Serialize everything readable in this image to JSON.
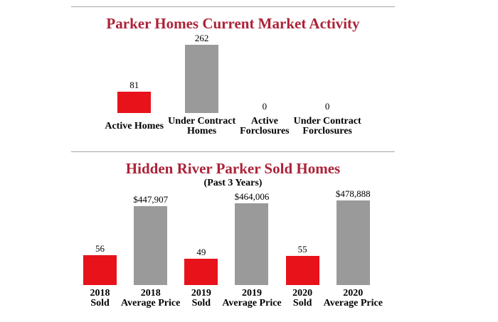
{
  "page": {
    "background": "#ffffff"
  },
  "colors": {
    "title_red": "#ac2238",
    "bar_red": "#e8121b",
    "bar_gray": "#9a9a9a",
    "divider_gray": "#a5a5a5",
    "text_black": "#000000"
  },
  "chart_data": [
    {
      "type": "bar",
      "title": "Parker Homes Current Market Activity",
      "subtitle": "",
      "categories": [
        "Active Homes",
        "Under Contract\nHomes",
        "Active\nForclosures",
        "Under Contract\nForclosures"
      ],
      "values": [
        81,
        262,
        0,
        0
      ],
      "value_labels": [
        "81",
        "262",
        "0",
        "0"
      ],
      "series_per_bar": [
        "count",
        "count",
        "count",
        "count"
      ],
      "bar_colors": [
        "#e8121b",
        "#9a9a9a",
        "#9a9a9a",
        "#9a9a9a"
      ],
      "xlabel": "",
      "ylabel": "",
      "ylim": [
        0,
        262
      ],
      "grid": false,
      "legend": "none",
      "axes_visible": false,
      "value_label_position": "above-bar"
    },
    {
      "type": "bar",
      "title": "Hidden River Parker Sold Homes",
      "subtitle": "(Past 3 Years)",
      "categories": [
        "2018\nSold",
        "2018\nAverage Price",
        "2019\nSold",
        "2019\nAverage Price",
        "2020\nSold",
        "2020\nAverage Price"
      ],
      "values": [
        56,
        447907,
        49,
        464006,
        55,
        478888
      ],
      "value_labels": [
        "56",
        "$447,907",
        "49",
        "$464,006",
        "55",
        "$478,888"
      ],
      "series_per_bar": [
        "sold",
        "price",
        "sold",
        "price",
        "sold",
        "price"
      ],
      "series": [
        {
          "name": "sold",
          "values": [
            56,
            49,
            55
          ]
        },
        {
          "name": "price",
          "values": [
            447907,
            464006,
            478888
          ]
        }
      ],
      "bar_colors": [
        "#e8121b",
        "#9a9a9a",
        "#e8121b",
        "#9a9a9a",
        "#e8121b",
        "#9a9a9a"
      ],
      "xlabel": "",
      "ylabel": "",
      "grid": false,
      "legend": "none",
      "axes_visible": false,
      "value_label_position": "above-bar"
    }
  ]
}
